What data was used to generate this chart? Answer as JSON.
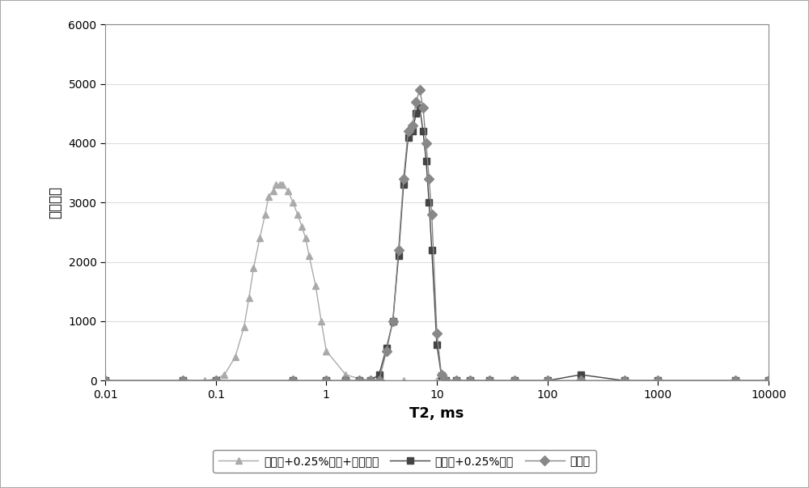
{
  "title": "",
  "xlabel": "T2, ms",
  "ylabel": "信号幅度",
  "xlim_log": [
    0.01,
    10000
  ],
  "ylim": [
    0,
    6000
  ],
  "yticks": [
    0,
    1000,
    2000,
    3000,
    4000,
    5000,
    6000
  ],
  "xticks": [
    0.01,
    0.1,
    1,
    10,
    100,
    1000,
    10000
  ],
  "xtick_labels": [
    "0.01",
    "0.1",
    "1",
    "10",
    "100",
    "1000",
    "10000"
  ],
  "series1_label": "钻井液",
  "series1_color": "#888888",
  "series1_marker": "D",
  "series1_x": [
    0.01,
    0.05,
    0.1,
    0.5,
    1.0,
    1.5,
    2.0,
    2.5,
    3.0,
    3.5,
    4.0,
    4.5,
    5.0,
    5.5,
    6.0,
    6.5,
    7.0,
    7.5,
    8.0,
    8.5,
    9.0,
    10.0,
    11.0,
    12.0,
    15.0,
    20.0,
    30.0,
    50.0,
    100.0,
    200.0,
    500.0,
    1000.0,
    5000.0,
    10000.0
  ],
  "series1_y": [
    0,
    0,
    0,
    0,
    0,
    0,
    0,
    0,
    0,
    500,
    1000,
    2200,
    3400,
    4200,
    4300,
    4700,
    4900,
    4600,
    4000,
    3400,
    2800,
    800,
    100,
    0,
    0,
    0,
    0,
    0,
    0,
    0,
    0,
    0,
    0,
    0
  ],
  "series2_label": "钻井液+0.25%铵盐",
  "series2_color": "#444444",
  "series2_marker": "s",
  "series2_x": [
    0.01,
    0.05,
    0.1,
    0.5,
    1.0,
    1.5,
    2.0,
    2.5,
    3.0,
    3.5,
    4.0,
    4.5,
    5.0,
    5.5,
    6.0,
    6.5,
    7.0,
    7.5,
    8.0,
    8.5,
    9.0,
    10.0,
    11.0,
    12.0,
    15.0,
    20.0,
    30.0,
    50.0,
    100.0,
    200.0,
    500.0,
    1000.0,
    5000.0,
    10000.0
  ],
  "series2_y": [
    0,
    0,
    0,
    0,
    0,
    0,
    0,
    0,
    100,
    550,
    1000,
    2100,
    3300,
    4100,
    4200,
    4500,
    4600,
    4200,
    3700,
    3000,
    2200,
    600,
    80,
    0,
    0,
    0,
    0,
    0,
    0,
    100,
    0,
    0,
    0,
    0
  ],
  "series3_label": "钻井液+0.25%铵盐+弛豫试剂",
  "series3_color": "#aaaaaa",
  "series3_marker": "^",
  "series3_x": [
    0.01,
    0.05,
    0.08,
    0.1,
    0.12,
    0.15,
    0.18,
    0.2,
    0.22,
    0.25,
    0.28,
    0.3,
    0.33,
    0.35,
    0.38,
    0.4,
    0.45,
    0.5,
    0.55,
    0.6,
    0.65,
    0.7,
    0.8,
    0.9,
    1.0,
    1.5,
    2.0,
    3.0,
    5.0,
    10.0,
    30.0,
    100.0,
    1000.0,
    10000.0
  ],
  "series3_y": [
    0,
    0,
    0,
    30,
    100,
    400,
    900,
    1400,
    1900,
    2400,
    2800,
    3100,
    3200,
    3300,
    3300,
    3300,
    3200,
    3000,
    2800,
    2600,
    2400,
    2100,
    1600,
    1000,
    500,
    100,
    30,
    0,
    0,
    0,
    0,
    0,
    0,
    0
  ],
  "background_color": "#ffffff",
  "border_color": "#aaaaaa",
  "grid_color": "#dddddd",
  "marker_size": 6,
  "linewidth": 1.0
}
